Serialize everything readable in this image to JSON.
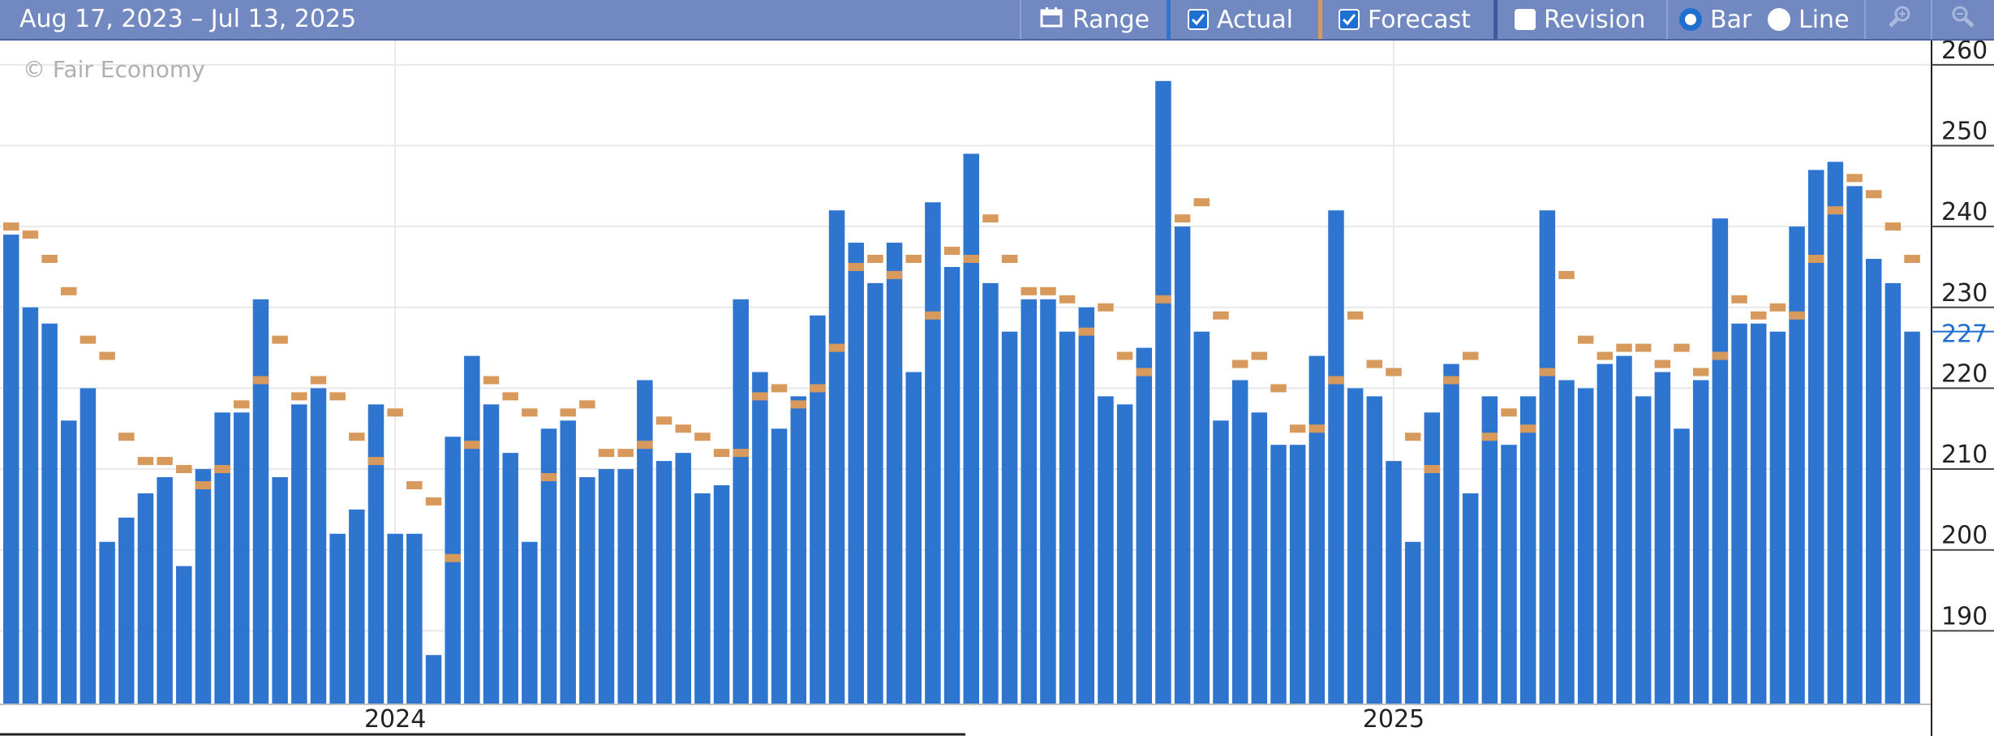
{
  "toolbar": {
    "date_range": "Aug 17, 2023 – Jul 13, 2025",
    "range_label": "Range",
    "actual_label": "Actual",
    "actual_checked": true,
    "forecast_label": "Forecast",
    "forecast_checked": true,
    "revision_label": "Revision",
    "revision_checked": false,
    "bar_label": "Bar",
    "line_label": "Line",
    "selected_view": "Bar",
    "icons": [
      "calendar-icon",
      "zoom-in-icon",
      "zoom-out-icon"
    ]
  },
  "watermark": "© Fair Economy",
  "colors": {
    "actual": "#2e75cf",
    "forecast": "#d89a5c",
    "toolbar": "#7189c0",
    "last_value": "#1f6fd0"
  },
  "chart_data": {
    "type": "bar",
    "ylim": [
      181,
      263
    ],
    "yticks": [
      190,
      200,
      210,
      220,
      230,
      240,
      250,
      260
    ],
    "last_value_label": "227",
    "x_year_labels": [
      {
        "label": "2024",
        "index": 20
      },
      {
        "label": "2025",
        "index": 72
      }
    ],
    "grid": true,
    "series": [
      {
        "name": "Actual",
        "values": [
          239,
          230,
          228,
          216,
          220,
          201,
          204,
          207,
          209,
          198,
          210,
          217,
          217,
          231,
          209,
          218,
          220,
          202,
          205,
          218,
          202,
          202,
          187,
          214,
          224,
          218,
          212,
          201,
          215,
          216,
          209,
          210,
          210,
          221,
          211,
          212,
          207,
          208,
          231,
          222,
          215,
          219,
          229,
          242,
          238,
          233,
          238,
          222,
          243,
          235,
          249,
          233,
          227,
          231,
          231,
          227,
          230,
          219,
          218,
          225,
          258,
          240,
          227,
          216,
          221,
          217,
          213,
          213,
          224,
          242,
          220,
          219,
          211,
          201,
          217,
          223,
          207,
          219,
          213,
          219,
          242,
          221,
          220,
          223,
          224,
          219,
          222,
          215,
          221,
          241,
          228,
          228,
          227,
          240,
          247,
          248,
          245,
          236,
          233,
          227
        ]
      },
      {
        "name": "Forecast",
        "values": [
          240,
          239,
          236,
          232,
          226,
          224,
          214,
          211,
          211,
          210,
          208,
          210,
          218,
          221,
          226,
          219,
          221,
          219,
          214,
          211,
          217,
          208,
          206,
          199,
          213,
          221,
          219,
          217,
          209,
          217,
          218,
          212,
          212,
          213,
          216,
          215,
          214,
          212,
          212,
          219,
          220,
          218,
          220,
          225,
          235,
          236,
          234,
          236,
          229,
          237,
          236,
          241,
          236,
          232,
          232,
          231,
          227,
          230,
          224,
          222,
          231,
          241,
          243,
          229,
          223,
          224,
          220,
          215,
          215,
          221,
          229,
          223,
          222,
          214,
          210,
          221,
          224,
          214,
          217,
          215,
          222,
          234,
          226,
          224,
          225,
          225,
          223,
          225,
          222,
          224,
          231,
          229,
          230,
          229,
          236,
          242,
          246,
          244,
          240,
          236
        ]
      }
    ]
  }
}
